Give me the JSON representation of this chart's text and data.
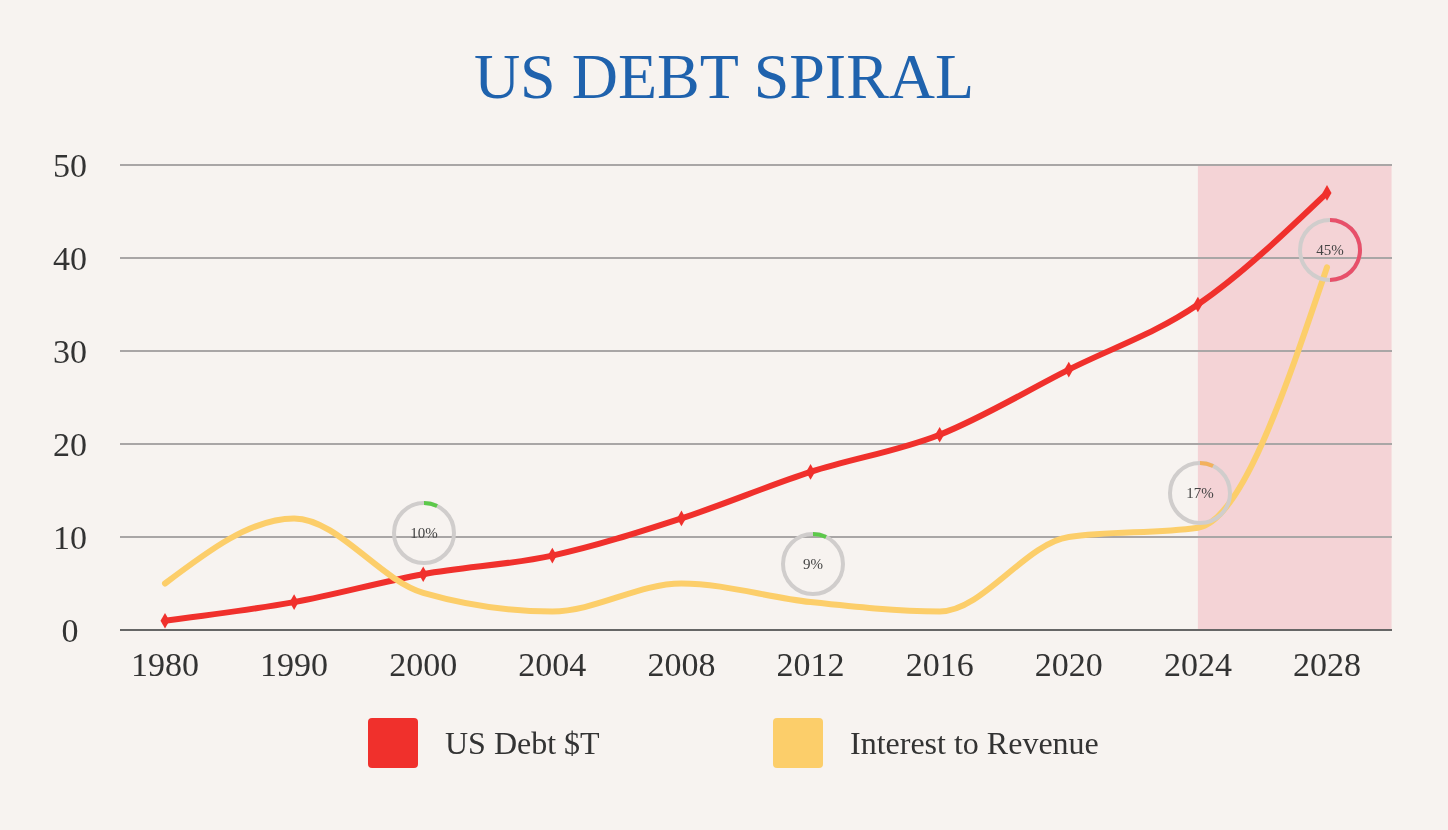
{
  "chart_data": {
    "type": "line",
    "title": "US DEBT SPIRAL",
    "categories": [
      "1980",
      "1990",
      "2000",
      "2004",
      "2008",
      "2012",
      "2016",
      "2020",
      "2024",
      "2028"
    ],
    "series": [
      {
        "name": "US Debt $T",
        "color": "#f0302c",
        "values": [
          1,
          3,
          6,
          8,
          12,
          17,
          21,
          28,
          35,
          47
        ],
        "marker": "diamond"
      },
      {
        "name": "Interest to Revenue",
        "color": "#fcce6a",
        "values": [
          5,
          12,
          4,
          2,
          5,
          3,
          2,
          10,
          11,
          39
        ],
        "marker": "none"
      }
    ],
    "ylim": [
      0,
      50
    ],
    "yticks": [
      0,
      10,
      20,
      30,
      40,
      50
    ],
    "grid": "y",
    "legend": "bottom",
    "line_style": "solid",
    "bands": [
      {
        "axis": "x",
        "from": "2024",
        "to": "2028",
        "color": "#f4d3d6"
      }
    ],
    "annotations": [
      "10%",
      "9%",
      "17%",
      "45%"
    ]
  }
}
